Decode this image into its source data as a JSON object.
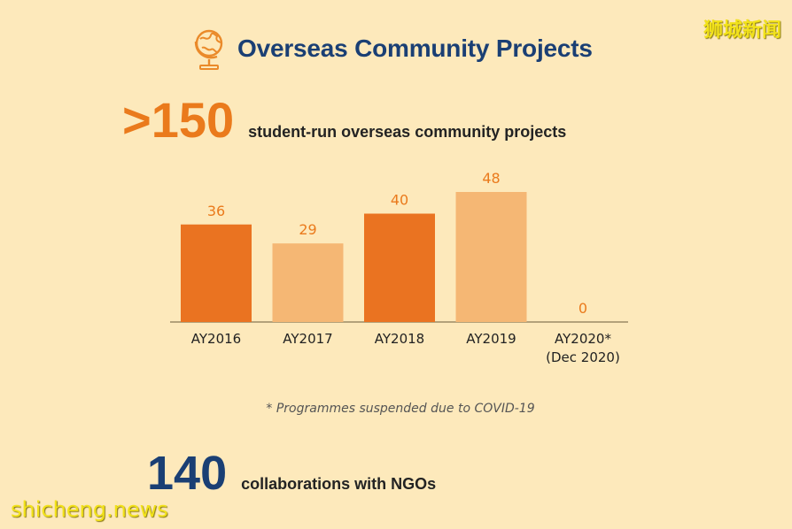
{
  "header": {
    "title": "Overseas Community Projects",
    "icon": "globe-icon"
  },
  "stats": {
    "projects_number": ">150",
    "projects_label": "student-run overseas community projects",
    "ngo_number": "140",
    "ngo_label": "collaborations with NGOs"
  },
  "footnote": "* Programmes suspended due to COVID-19",
  "watermarks": {
    "top": "狮城新闻",
    "bottom": "shicheng.news"
  },
  "colors": {
    "background": "#fde9bb",
    "bar_dark": "#ea7321",
    "bar_light": "#f5b774",
    "value_label": "#ea7a1c",
    "title": "#1a3f74"
  },
  "chart_data": {
    "type": "bar",
    "categories": [
      "AY2016",
      "AY2017",
      "AY2018",
      "AY2019",
      "AY2020*\n(Dec 2020)"
    ],
    "values": [
      36,
      29,
      40,
      48,
      0
    ],
    "data_labels": [
      "36",
      "29",
      "40",
      "48",
      "0"
    ],
    "bar_colors": [
      "#ea7321",
      "#f5b774",
      "#ea7321",
      "#f5b774",
      "#f5b774"
    ],
    "title": "",
    "xlabel": "",
    "ylabel": "",
    "ylim": [
      0,
      50
    ],
    "grid": false,
    "legend": "none"
  }
}
